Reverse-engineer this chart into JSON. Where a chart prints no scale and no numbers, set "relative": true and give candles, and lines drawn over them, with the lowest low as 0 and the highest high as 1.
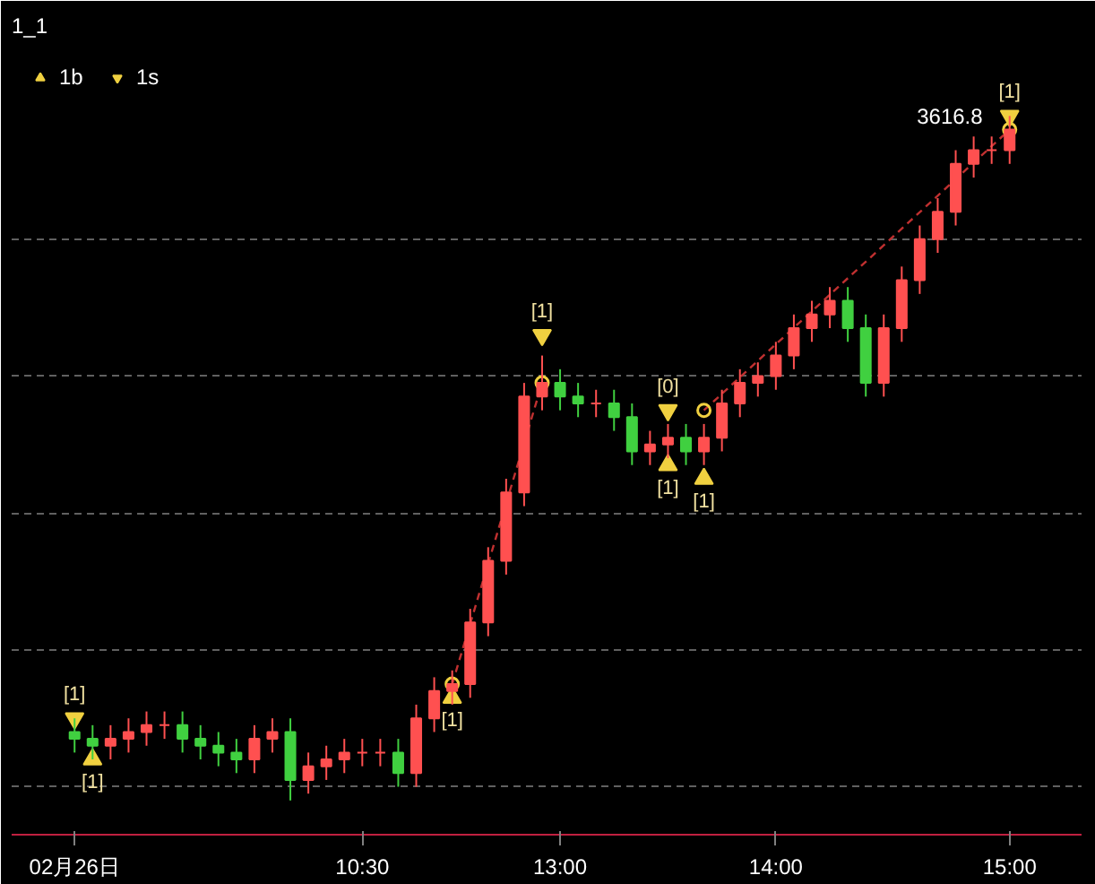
{
  "chart_data": {
    "type": "candlestick",
    "title": "1_1",
    "relative": true,
    "grid": "y",
    "legend": "top left",
    "categories": [
      "02月26日",
      null,
      null,
      null,
      null,
      null,
      null,
      null,
      null,
      null,
      null,
      null,
      null,
      null,
      null,
      null,
      "10:30",
      null,
      null,
      null,
      null,
      null,
      null,
      null,
      null,
      null,
      null,
      "13:00",
      null,
      null,
      null,
      null,
      null,
      null,
      null,
      null,
      null,
      null,
      null,
      "14:00",
      null,
      null,
      null,
      null,
      null,
      null,
      null,
      null,
      null,
      null,
      null,
      null,
      "15:00"
    ],
    "ohlc": [
      [
        0.1,
        0.12,
        0.07,
        0.09
      ],
      [
        0.09,
        0.11,
        0.06,
        0.08
      ],
      [
        0.08,
        0.11,
        0.06,
        0.09
      ],
      [
        0.09,
        0.12,
        0.07,
        0.1
      ],
      [
        0.1,
        0.13,
        0.08,
        0.11
      ],
      [
        0.11,
        0.13,
        0.09,
        0.11
      ],
      [
        0.11,
        0.13,
        0.07,
        0.09
      ],
      [
        0.09,
        0.11,
        0.06,
        0.08
      ],
      [
        0.08,
        0.1,
        0.05,
        0.07
      ],
      [
        0.07,
        0.09,
        0.04,
        0.06
      ],
      [
        0.06,
        0.11,
        0.04,
        0.09
      ],
      [
        0.09,
        0.12,
        0.07,
        0.1
      ],
      [
        0.1,
        0.12,
        0.0,
        0.03
      ],
      [
        0.03,
        0.07,
        0.01,
        0.05
      ],
      [
        0.05,
        0.08,
        0.03,
        0.06
      ],
      [
        0.06,
        0.09,
        0.04,
        0.07
      ],
      [
        0.07,
        0.09,
        0.05,
        0.07
      ],
      [
        0.07,
        0.09,
        0.05,
        0.07
      ],
      [
        0.07,
        0.09,
        0.02,
        0.04
      ],
      [
        0.04,
        0.14,
        0.02,
        0.12
      ],
      [
        0.12,
        0.18,
        0.1,
        0.16
      ],
      [
        0.16,
        0.19,
        0.14,
        0.17
      ],
      [
        0.17,
        0.28,
        0.15,
        0.26
      ],
      [
        0.26,
        0.37,
        0.24,
        0.35
      ],
      [
        0.35,
        0.47,
        0.33,
        0.45
      ],
      [
        0.45,
        0.61,
        0.43,
        0.59
      ],
      [
        0.59,
        0.65,
        0.57,
        0.61
      ],
      [
        0.61,
        0.63,
        0.57,
        0.59
      ],
      [
        0.59,
        0.61,
        0.56,
        0.58
      ],
      [
        0.58,
        0.6,
        0.56,
        0.58
      ],
      [
        0.58,
        0.6,
        0.54,
        0.56
      ],
      [
        0.56,
        0.58,
        0.49,
        0.51
      ],
      [
        0.51,
        0.54,
        0.49,
        0.52
      ],
      [
        0.52,
        0.55,
        0.5,
        0.53
      ],
      [
        0.53,
        0.55,
        0.49,
        0.51
      ],
      [
        0.51,
        0.55,
        0.49,
        0.53
      ],
      [
        0.53,
        0.6,
        0.51,
        0.58
      ],
      [
        0.58,
        0.63,
        0.56,
        0.61
      ],
      [
        0.61,
        0.64,
        0.59,
        0.62
      ],
      [
        0.62,
        0.67,
        0.6,
        0.65
      ],
      [
        0.65,
        0.71,
        0.63,
        0.69
      ],
      [
        0.69,
        0.73,
        0.67,
        0.71
      ],
      [
        0.71,
        0.75,
        0.69,
        0.73
      ],
      [
        0.73,
        0.75,
        0.67,
        0.69
      ],
      [
        0.69,
        0.71,
        0.59,
        0.61
      ],
      [
        0.61,
        0.71,
        0.59,
        0.69
      ],
      [
        0.69,
        0.78,
        0.67,
        0.76
      ],
      [
        0.76,
        0.84,
        0.74,
        0.82
      ],
      [
        0.82,
        0.88,
        0.8,
        0.86
      ],
      [
        0.86,
        0.95,
        0.84,
        0.93
      ],
      [
        0.93,
        0.97,
        0.91,
        0.95
      ],
      [
        0.95,
        0.97,
        0.93,
        0.95
      ],
      [
        0.95,
        1.0,
        0.93,
        0.98
      ]
    ],
    "colors": [
      "#40d040",
      "#40d040",
      "#ff5050",
      "#ff5050",
      "#ff5050",
      "#ff5050",
      "#40d040",
      "#40d040",
      "#40d040",
      "#40d040",
      "#ff5050",
      "#ff5050",
      "#40d040",
      "#ff5050",
      "#ff5050",
      "#ff5050",
      "#ff5050",
      "#ff5050",
      "#40d040",
      "#ff5050",
      "#ff5050",
      "#ff5050",
      "#ff5050",
      "#ff5050",
      "#ff5050",
      "#ff5050",
      "#ff5050",
      "#40d040",
      "#40d040",
      "#ff5050",
      "#40d040",
      "#40d040",
      "#ff5050",
      "#ff5050",
      "#40d040",
      "#ff5050",
      "#ff5050",
      "#ff5050",
      "#ff5050",
      "#ff5050",
      "#ff5050",
      "#ff5050",
      "#ff5050",
      "#40d040",
      "#40d040",
      "#ff5050",
      "#ff5050",
      "#ff5050",
      "#ff5050",
      "#ff5050",
      "#ff5050",
      "#ff5050",
      "#ff5050"
    ],
    "series": [
      {
        "type": "line",
        "color": "#c03030",
        "line_style": "dashed",
        "marker": "circle",
        "values": [
          null,
          null,
          null,
          null,
          null,
          null,
          null,
          null,
          null,
          null,
          null,
          null,
          null,
          null,
          null,
          null,
          null,
          null,
          null,
          null,
          null,
          0.17,
          null,
          null,
          null,
          null,
          0.61,
          null,
          null,
          null,
          null,
          null,
          null,
          null,
          null,
          null,
          null,
          null,
          null,
          null,
          null,
          null,
          null,
          null,
          null,
          null,
          null,
          null,
          null,
          null,
          null,
          null,
          null
        ]
      },
      {
        "type": "line",
        "color": "#c03030",
        "line_style": "dashed",
        "marker": "circle",
        "values": [
          null,
          null,
          null,
          null,
          null,
          null,
          null,
          null,
          null,
          null,
          null,
          null,
          null,
          null,
          null,
          null,
          null,
          null,
          null,
          null,
          null,
          null,
          null,
          null,
          null,
          null,
          null,
          null,
          null,
          null,
          null,
          null,
          null,
          null,
          null,
          0.57,
          null,
          null,
          null,
          null,
          null,
          null,
          null,
          null,
          null,
          null,
          null,
          null,
          null,
          null,
          null,
          null,
          0.98
        ]
      },
      {
        "type": "scatter",
        "name": "1b",
        "color": "#f0d040",
        "marker": "triangle",
        "values": [
          null,
          0.06,
          null,
          null,
          null,
          null,
          null,
          null,
          null,
          null,
          null,
          null,
          null,
          null,
          null,
          null,
          null,
          null,
          null,
          null,
          null,
          0.15,
          null,
          null,
          null,
          null,
          null,
          null,
          null,
          null,
          null,
          null,
          null,
          0.49,
          null,
          0.47,
          null,
          null,
          null,
          null,
          null,
          null,
          null,
          null,
          null,
          null,
          null,
          null,
          null,
          null,
          null,
          null,
          null
        ]
      },
      {
        "type": "scatter",
        "name": "1s",
        "color": "#f0d040",
        "marker": "triangle",
        "values": [
          0.12,
          null,
          null,
          null,
          null,
          null,
          null,
          null,
          null,
          null,
          null,
          null,
          null,
          null,
          null,
          null,
          null,
          null,
          null,
          null,
          null,
          null,
          null,
          null,
          null,
          null,
          0.68,
          null,
          null,
          null,
          null,
          null,
          null,
          0.57,
          null,
          null,
          null,
          null,
          null,
          null,
          null,
          null,
          null,
          null,
          null,
          null,
          null,
          null,
          null,
          null,
          null,
          null,
          1.0
        ]
      }
    ],
    "annotations": [
      "3616.8",
      "[1]",
      "[1]",
      "[1]",
      "[1]",
      "[1]",
      "[1]",
      "[0]",
      "[1]"
    ]
  }
}
